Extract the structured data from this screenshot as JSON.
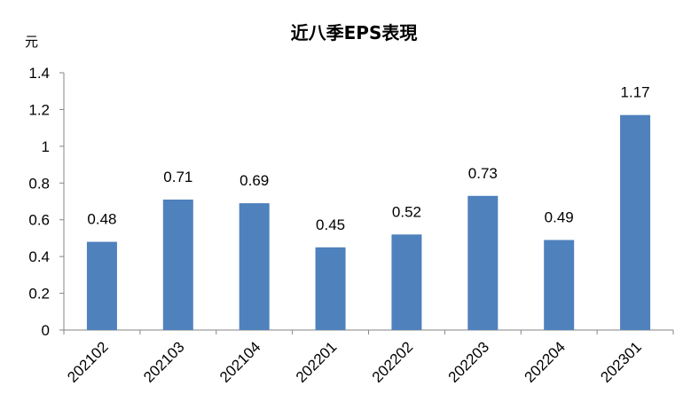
{
  "chart_data": {
    "type": "bar",
    "title": "近八季EPS表現",
    "ylabel": "元",
    "xlabel": "",
    "categories": [
      "202102",
      "202103",
      "202104",
      "202201",
      "202202",
      "202203",
      "202204",
      "202301"
    ],
    "values": [
      0.48,
      0.71,
      0.69,
      0.45,
      0.52,
      0.73,
      0.49,
      1.17
    ],
    "data_labels": [
      "0.48",
      "0.71",
      "0.69",
      "0.45",
      "0.52",
      "0.73",
      "0.49",
      "1.17"
    ],
    "yticks": [
      "0",
      "0.2",
      "0.4",
      "0.6",
      "0.8",
      "1",
      "1.2",
      "1.4"
    ],
    "ylim": [
      0,
      1.4
    ],
    "grid": false,
    "legend": "none",
    "bar_color": "#4F81BD"
  }
}
